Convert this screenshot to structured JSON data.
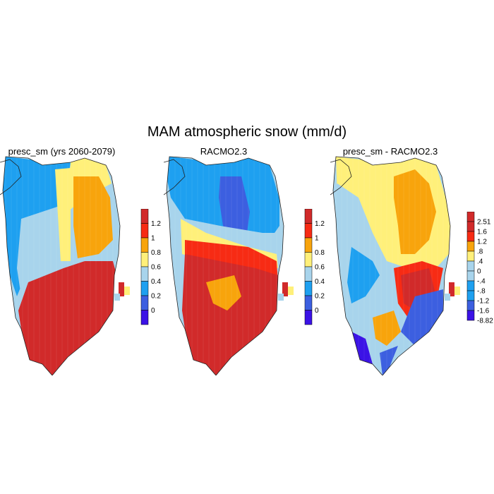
{
  "figure": {
    "title": "MAM atmospheric snow (mm/d)"
  },
  "palette": {
    "purple": "#3b12e6",
    "darkblue": "#3c5fe0",
    "blue": "#1ea0f0",
    "lightblue": "#a8d4ec",
    "yellow": "#fff07a",
    "orange": "#f8a40c",
    "red": "#f72b14",
    "darkred": "#d12a2a",
    "coast": "#222222"
  },
  "panels": [
    {
      "title": "presc_sm (yrs 2060-2079)",
      "colorbar_labels": [
        "1.2",
        "1",
        "0.8",
        "0.6",
        "0.4",
        "0.2",
        "0"
      ],
      "colorbar_colors": [
        "darkred",
        "red",
        "orange",
        "yellow",
        "lightblue",
        "blue",
        "darkblue",
        "purple"
      ]
    },
    {
      "title": "RACMO2.3",
      "colorbar_labels": [
        "1.2",
        "1",
        "0.8",
        "0.6",
        "0.4",
        "0.2",
        "0"
      ],
      "colorbar_colors": [
        "darkred",
        "red",
        "orange",
        "yellow",
        "lightblue",
        "blue",
        "darkblue",
        "purple"
      ]
    },
    {
      "title": "presc_sm - RACMO2.3",
      "colorbar_labels": [
        "2.51",
        "1.6",
        "1.2",
        ".8",
        ".4",
        "0",
        "-.4",
        "-.8",
        "-1.2",
        "-1.6",
        "-8.82"
      ],
      "colorbar_colors": [
        "darkred",
        "darkred",
        "red",
        "orange",
        "yellow",
        "lightblue",
        "lightblue",
        "blue",
        "blue",
        "darkblue",
        "purple"
      ]
    }
  ]
}
